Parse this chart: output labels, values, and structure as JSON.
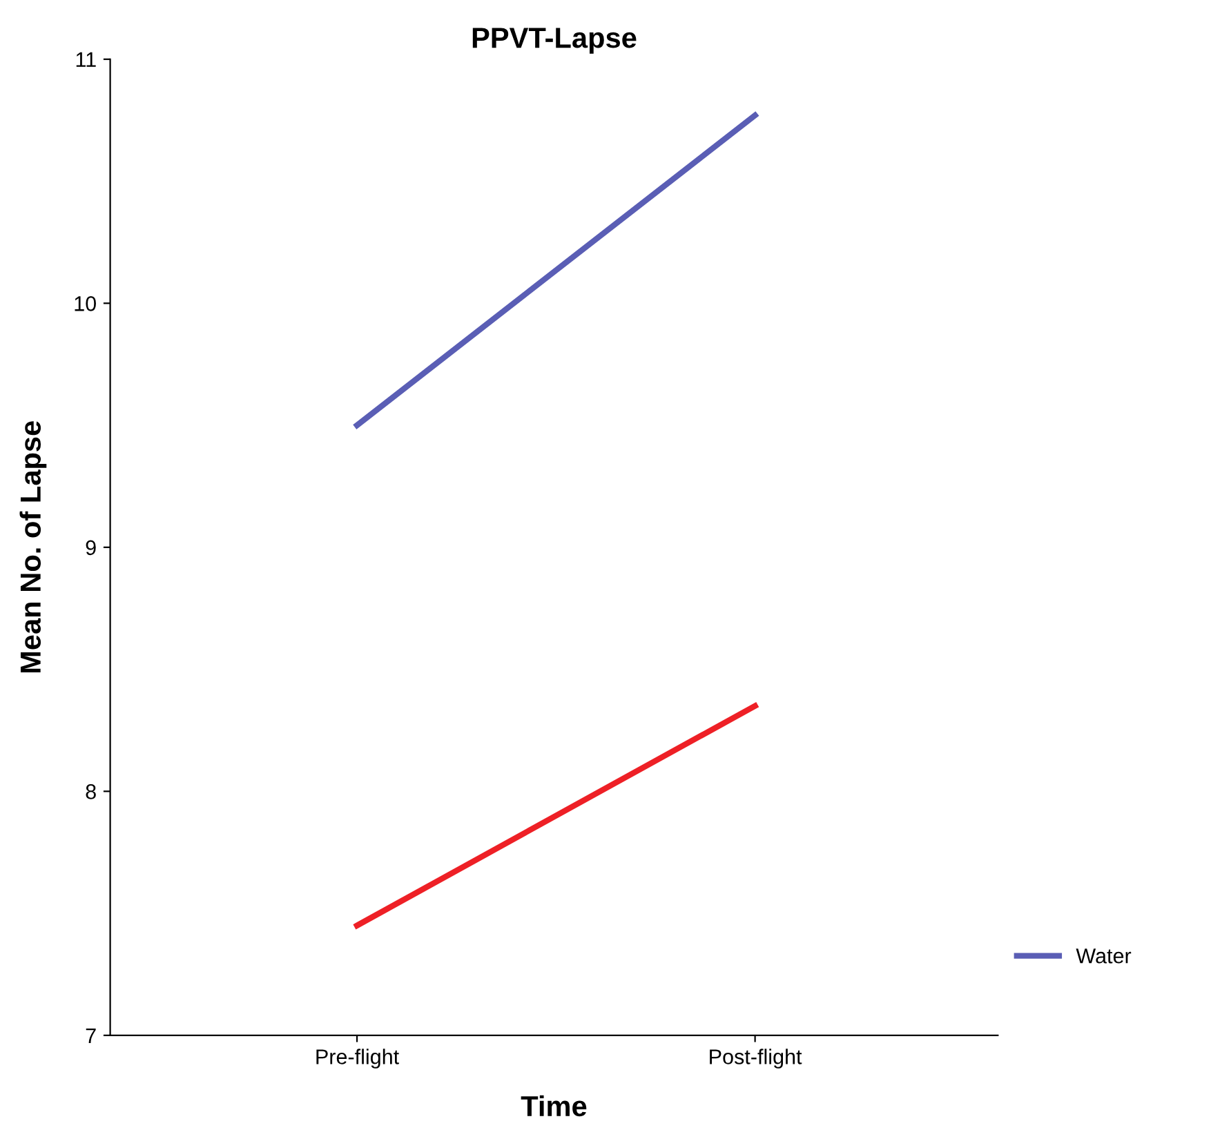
{
  "chart_data": {
    "type": "line",
    "title": "PPVT-Lapse",
    "xlabel": "Time",
    "ylabel": "Mean No. of Lapse",
    "categories": [
      "Pre-flight",
      "Post-flight"
    ],
    "series": [
      {
        "name": "Water",
        "color": "#5a5eb5",
        "values": [
          9.5,
          10.77
        ]
      },
      {
        "color": "#ee2026",
        "values": [
          7.45,
          8.35
        ]
      }
    ],
    "ylim": [
      7,
      11
    ],
    "yticks": [
      7,
      8,
      9,
      10,
      11
    ],
    "grid": false,
    "legend": "right",
    "marker": "none",
    "line_style": "solid"
  }
}
